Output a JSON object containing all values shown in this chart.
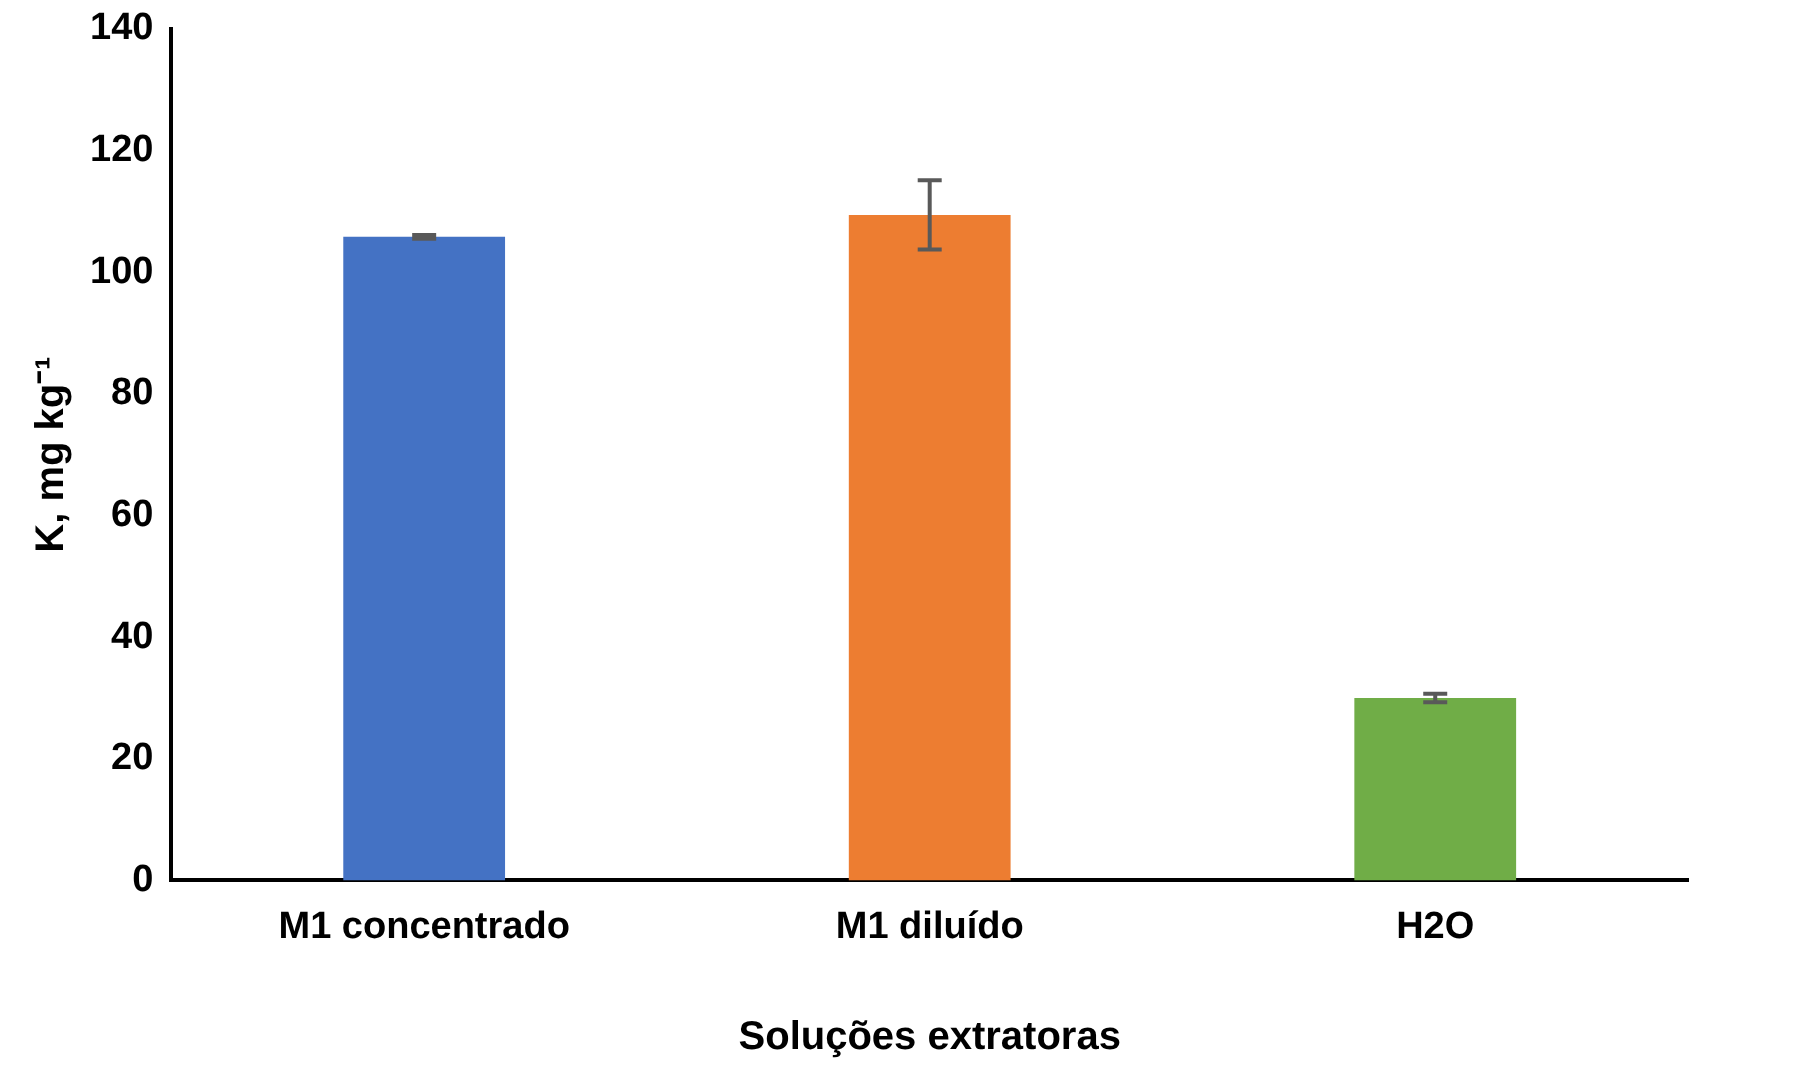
{
  "chart_data": {
    "type": "bar",
    "xlabel": "Soluções extratoras",
    "ylabel": "K, mg kg⁻¹",
    "categories": [
      "M1 concentrado",
      "M1 diluído",
      "H2O"
    ],
    "values": [
      105.8,
      109.4,
      30.0
    ],
    "colors": [
      "#4472c4",
      "#ed7d31",
      "#70ad47"
    ],
    "errors": [
      0.3,
      5.7,
      0.7
    ],
    "ylim": [
      0,
      140
    ],
    "yticks": [
      0,
      20,
      40,
      60,
      80,
      100,
      120,
      140
    ],
    "grid": false,
    "legend": false
  }
}
